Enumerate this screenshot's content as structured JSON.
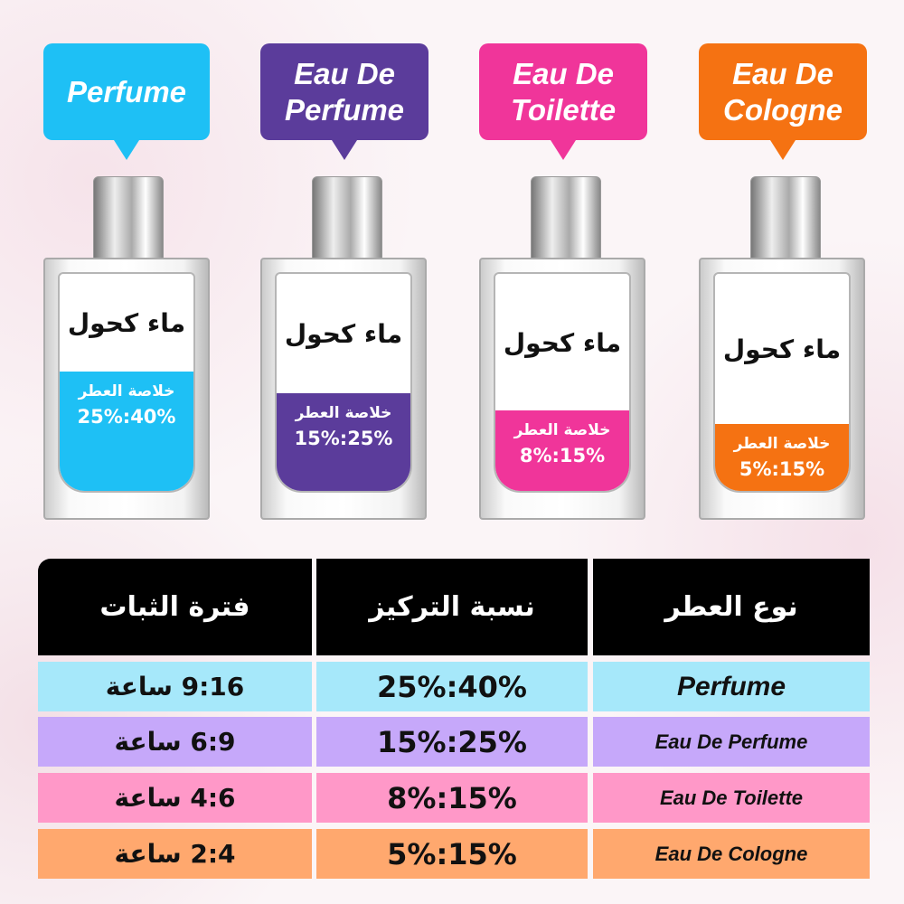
{
  "bottles": [
    {
      "type": "Perfume",
      "color": "#1ec0f5",
      "alcohol": "ماء كحول",
      "extract": "خلاصة العطر",
      "percent": "25%:40%",
      "fill_fraction": 0.55
    },
    {
      "type": "Eau De Perfume",
      "color": "#5b3c9b",
      "alcohol": "ماء كحول",
      "extract": "خلاصة العطر",
      "percent": "15%:25%",
      "fill_fraction": 0.45
    },
    {
      "type": "Eau De Toilette",
      "color": "#f0359a",
      "alcohol": "ماء كحول",
      "extract": "خلاصة العطر",
      "percent": "8%:15%",
      "fill_fraction": 0.37
    },
    {
      "type": "Eau De Cologne",
      "color": "#f57212",
      "alcohol": "ماء كحول",
      "extract": "خلاصة العطر",
      "percent": "5%:15%",
      "fill_fraction": 0.31
    }
  ],
  "table": {
    "headers": {
      "type": "نوع العطر",
      "concentration": "نسبة التركيز",
      "longevity": "فترة الثبات"
    },
    "rows": [
      {
        "type": "Perfume",
        "concentration": "25%:40%",
        "longevity": "9:16 ساعة",
        "color": "#a6e8fa"
      },
      {
        "type": "Eau De Perfume",
        "concentration": "15%:25%",
        "longevity": "6:9 ساعة",
        "color": "#c6a8fa"
      },
      {
        "type": "Eau De Toilette",
        "concentration": "8%:15%",
        "longevity": "4:6 ساعة",
        "color": "#ff98c8"
      },
      {
        "type": "Eau De Cologne",
        "concentration": "5%:15%",
        "longevity": "2:4 ساعة",
        "color": "#ffa86e"
      }
    ]
  }
}
